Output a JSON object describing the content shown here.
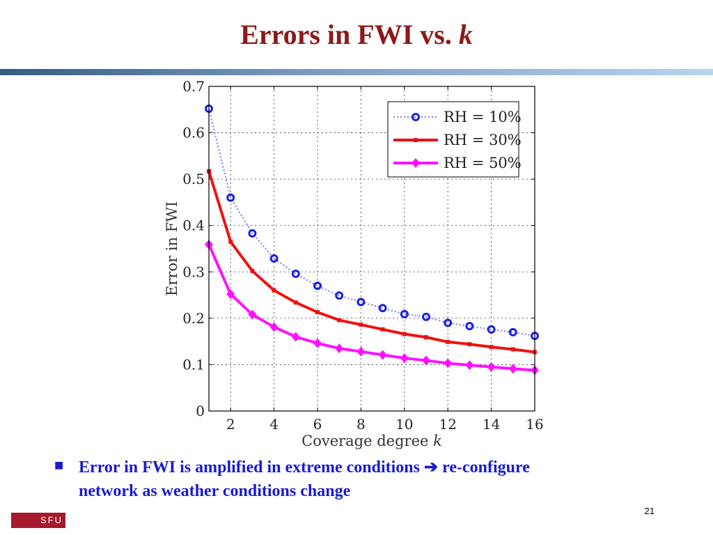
{
  "slide": {
    "title": "Errors in FWI vs.",
    "title_k": "k",
    "bullet_icon": "square-bullet",
    "bullet_line1": "Error in FWI is amplified in extreme conditions",
    "arrow_icon": "➔",
    "bullet_line1_end": "re-configure",
    "bullet_line2": "network as weather conditions change",
    "page_number": "21",
    "logo_text": "SFU",
    "colors": {
      "title": "#8b1a1a",
      "bullet": "#1a1ad0",
      "logo": "#a6192e"
    }
  },
  "chart_data": {
    "type": "line",
    "xlabel": "Coverage degree",
    "xlabel_var": "k",
    "ylabel": "Error in FWI",
    "xlim": [
      1,
      16
    ],
    "ylim": [
      0,
      0.7
    ],
    "xticks": [
      2,
      4,
      6,
      8,
      10,
      12,
      14,
      16
    ],
    "yticks": [
      0,
      0.1,
      0.2,
      0.3,
      0.4,
      0.5,
      0.6,
      0.7
    ],
    "ytick_labels": [
      "0",
      "0.1",
      "0.2",
      "0.3",
      "0.4",
      "0.5",
      "0.6",
      "0.7"
    ],
    "grid": true,
    "legend_position": "top-right",
    "x": [
      1,
      2,
      3,
      4,
      5,
      6,
      7,
      8,
      9,
      10,
      11,
      12,
      13,
      14,
      15,
      16
    ],
    "series": [
      {
        "name": "RH = 10%",
        "color": "#1f1fdc",
        "line_style": "dotted",
        "marker": "circle",
        "values": [
          0.652,
          0.46,
          0.383,
          0.329,
          0.296,
          0.27,
          0.249,
          0.235,
          0.222,
          0.209,
          0.203,
          0.19,
          0.183,
          0.176,
          0.17,
          0.162
        ]
      },
      {
        "name": "RH = 30%",
        "color": "#ee1111",
        "line_style": "solid",
        "marker": "square",
        "values": [
          0.517,
          0.365,
          0.302,
          0.26,
          0.234,
          0.213,
          0.196,
          0.186,
          0.176,
          0.166,
          0.159,
          0.149,
          0.144,
          0.138,
          0.133,
          0.127
        ]
      },
      {
        "name": "RH = 50%",
        "color": "#ff11ff",
        "line_style": "solid",
        "marker": "diamond",
        "values": [
          0.359,
          0.252,
          0.208,
          0.181,
          0.16,
          0.146,
          0.135,
          0.128,
          0.121,
          0.114,
          0.109,
          0.103,
          0.099,
          0.095,
          0.091,
          0.088
        ]
      }
    ]
  }
}
